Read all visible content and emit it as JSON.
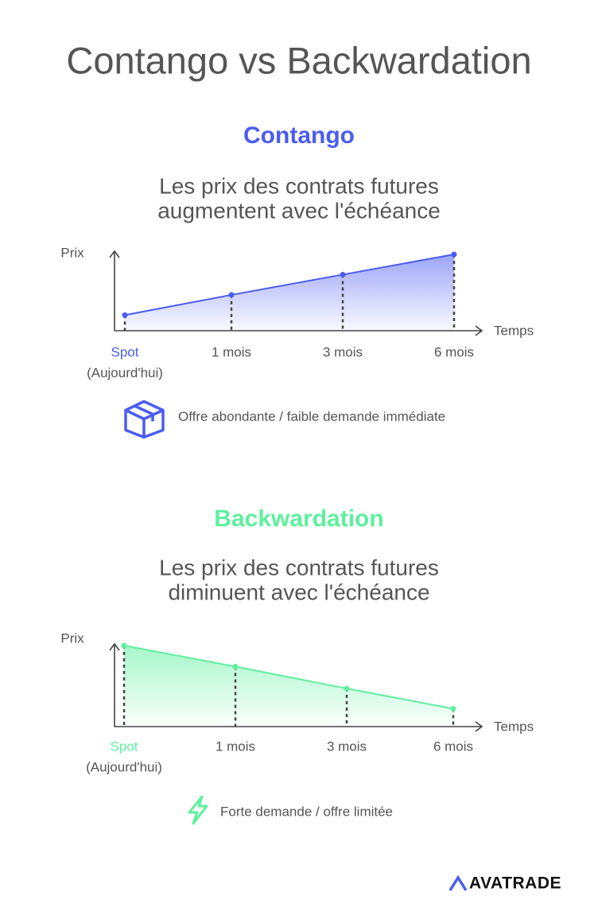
{
  "title": "Contango vs Backwardation",
  "chart_data": [
    {
      "type": "line",
      "title": "Contango",
      "subtitle": [
        "Les prix des contrats futures",
        "augmentent avec l'échéance"
      ],
      "ylabel": "Prix",
      "xlabel": "Temps",
      "categories": [
        "Spot",
        "1 mois",
        "3 mois",
        "6 mois"
      ],
      "category_note": "(Aujourd'hui)",
      "values": [
        20,
        46,
        72,
        98
      ],
      "ylim": [
        0,
        100
      ],
      "color": "#4b5cf0",
      "note": "Offre abondante / faible demande immédiate"
    },
    {
      "type": "line",
      "title": "Backwardation",
      "subtitle": [
        "Les prix des contrats futures",
        "diminuent avec l'échéance"
      ],
      "ylabel": "Prix",
      "xlabel": "Temps",
      "categories": [
        "Spot",
        "1 mois",
        "3 mois",
        "6 mois"
      ],
      "category_note": "(Aujourd'hui)",
      "values": [
        100,
        74,
        47,
        22
      ],
      "ylim": [
        0,
        100
      ],
      "color": "#5ef09e",
      "note": "Forte demande / offre limitée"
    }
  ],
  "logo": "AVATRADE"
}
